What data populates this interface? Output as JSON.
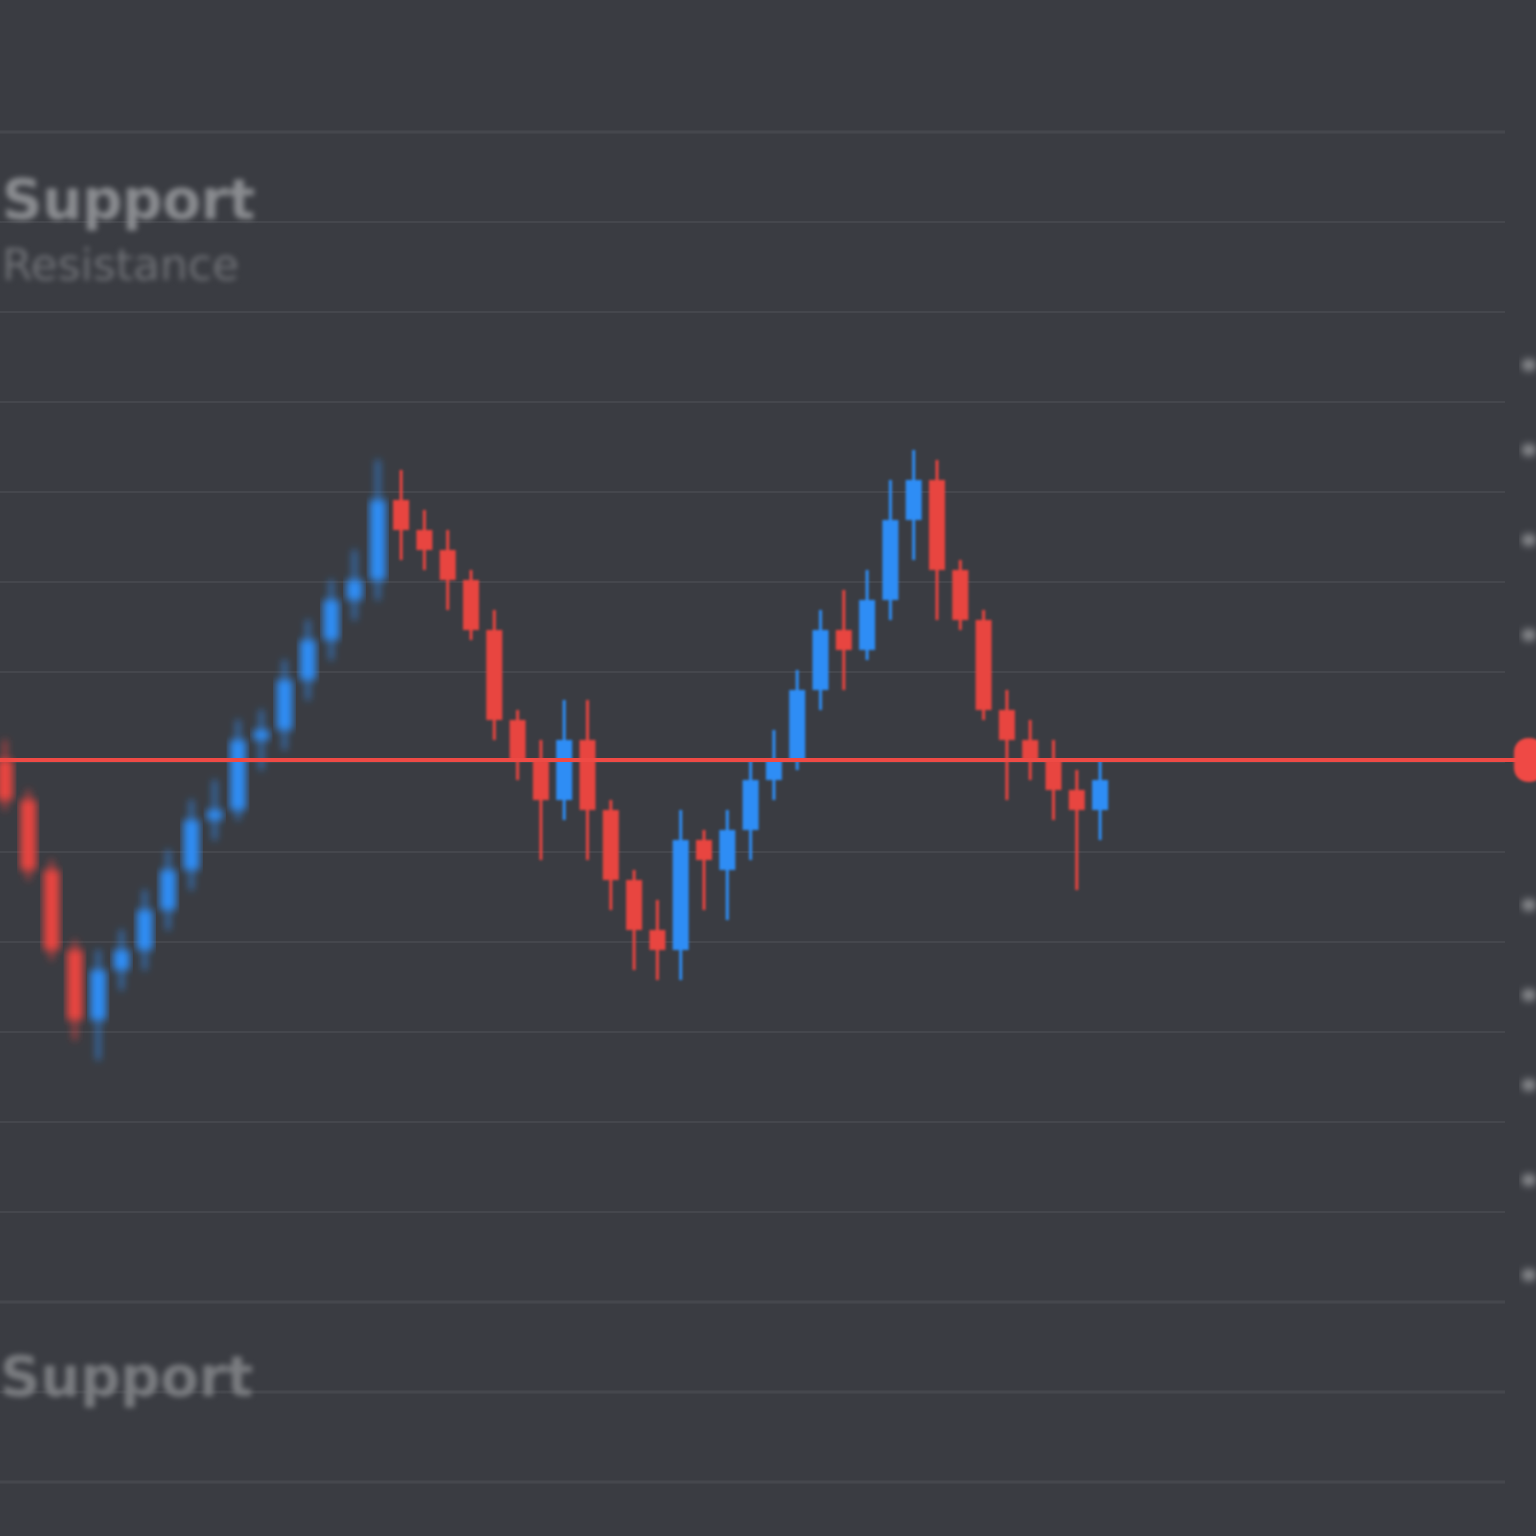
{
  "labels": {
    "top": "Support",
    "second": "Resistance",
    "bottom": "Support"
  },
  "colors": {
    "background": "#3a3c42",
    "up": "#2f8df5",
    "down": "#e8453f",
    "level_line": "#ef4a45",
    "grid": "#45474d"
  },
  "chart_data": {
    "type": "candlestick",
    "title": "",
    "xlabel": "",
    "ylabel": "",
    "grid": true,
    "level_line": {
      "name": "Support",
      "value": 100
    },
    "ylim": [
      -50,
      240
    ],
    "ohlc": [
      [
        100,
        104,
        90,
        92
      ],
      [
        92,
        94,
        76,
        78
      ],
      [
        78,
        80,
        60,
        62
      ],
      [
        62,
        64,
        44,
        48
      ],
      [
        48,
        62,
        40,
        58
      ],
      [
        58,
        66,
        54,
        62
      ],
      [
        62,
        74,
        58,
        70
      ],
      [
        70,
        82,
        66,
        78
      ],
      [
        78,
        92,
        74,
        88
      ],
      [
        88,
        96,
        84,
        90
      ],
      [
        90,
        108,
        88,
        104
      ],
      [
        104,
        110,
        98,
        106
      ],
      [
        106,
        120,
        102,
        116
      ],
      [
        116,
        128,
        112,
        124
      ],
      [
        124,
        136,
        120,
        132
      ],
      [
        132,
        142,
        128,
        136
      ],
      [
        136,
        160,
        132,
        152
      ],
      [
        152,
        158,
        140,
        146
      ],
      [
        146,
        150,
        138,
        142
      ],
      [
        142,
        146,
        130,
        136
      ],
      [
        136,
        138,
        124,
        126
      ],
      [
        126,
        130,
        104,
        108
      ],
      [
        108,
        110,
        96,
        100
      ],
      [
        100,
        104,
        80,
        92
      ],
      [
        92,
        112,
        88,
        104
      ],
      [
        104,
        112,
        80,
        90
      ],
      [
        90,
        92,
        70,
        76
      ],
      [
        76,
        78,
        58,
        66
      ],
      [
        66,
        72,
        56,
        62
      ],
      [
        62,
        90,
        56,
        84
      ],
      [
        84,
        86,
        70,
        80
      ],
      [
        78,
        90,
        68,
        86
      ],
      [
        86,
        100,
        80,
        96
      ],
      [
        96,
        106,
        92,
        100
      ],
      [
        100,
        118,
        98,
        114
      ],
      [
        114,
        130,
        110,
        126
      ],
      [
        126,
        134,
        114,
        122
      ],
      [
        122,
        138,
        120,
        132
      ],
      [
        132,
        156,
        128,
        148
      ],
      [
        148,
        162,
        140,
        156
      ],
      [
        156,
        160,
        128,
        138
      ],
      [
        138,
        140,
        126,
        128
      ],
      [
        128,
        130,
        108,
        110
      ],
      [
        110,
        114,
        92,
        104
      ],
      [
        104,
        108,
        96,
        100
      ],
      [
        100,
        104,
        88,
        94
      ],
      [
        94,
        98,
        74,
        90
      ],
      [
        90,
        100,
        84,
        96
      ]
    ]
  }
}
